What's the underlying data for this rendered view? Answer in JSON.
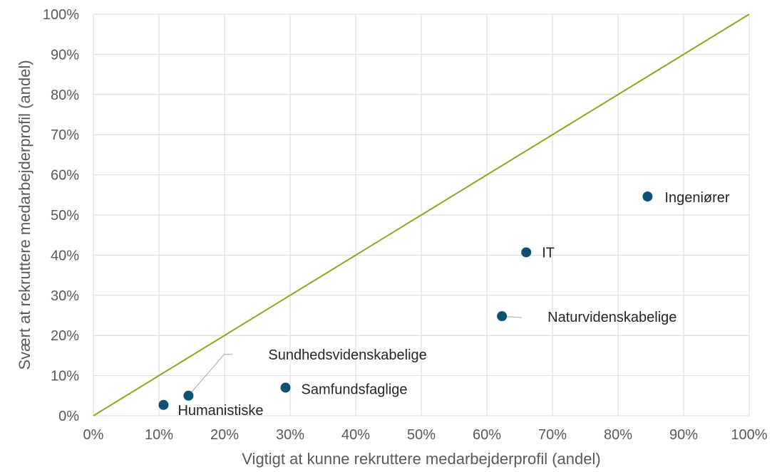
{
  "chart_data": {
    "type": "scatter",
    "xlabel": "Vigtigt at kunne rekruttere medarbejderprofil (andel)",
    "ylabel": "Svært at rekruttere medarbejderprofil (andel)",
    "xlim": [
      0,
      1
    ],
    "ylim": [
      0,
      1
    ],
    "x_ticks": [
      "0%",
      "10%",
      "20%",
      "30%",
      "40%",
      "50%",
      "60%",
      "70%",
      "80%",
      "90%",
      "100%"
    ],
    "y_ticks": [
      "0%",
      "10%",
      "20%",
      "30%",
      "40%",
      "50%",
      "60%",
      "70%",
      "80%",
      "90%",
      "100%"
    ],
    "grid": true,
    "reference_line": {
      "x": [
        0,
        1
      ],
      "y": [
        0,
        1
      ]
    },
    "points": [
      {
        "label": "Humanistiske",
        "x": 0.107,
        "y": 0.027
      },
      {
        "label": "Sundhedsvidenskabelige",
        "x": 0.145,
        "y": 0.05
      },
      {
        "label": "Samfundsfaglige",
        "x": 0.293,
        "y": 0.07
      },
      {
        "label": "Naturvidenskabelige",
        "x": 0.623,
        "y": 0.248
      },
      {
        "label": "IT",
        "x": 0.66,
        "y": 0.407
      },
      {
        "label": "Ingeniører",
        "x": 0.845,
        "y": 0.546
      }
    ],
    "colors": {
      "points": "#0e5273",
      "reference_line": "#8aa81f",
      "grid": "#d9d9d9"
    }
  }
}
